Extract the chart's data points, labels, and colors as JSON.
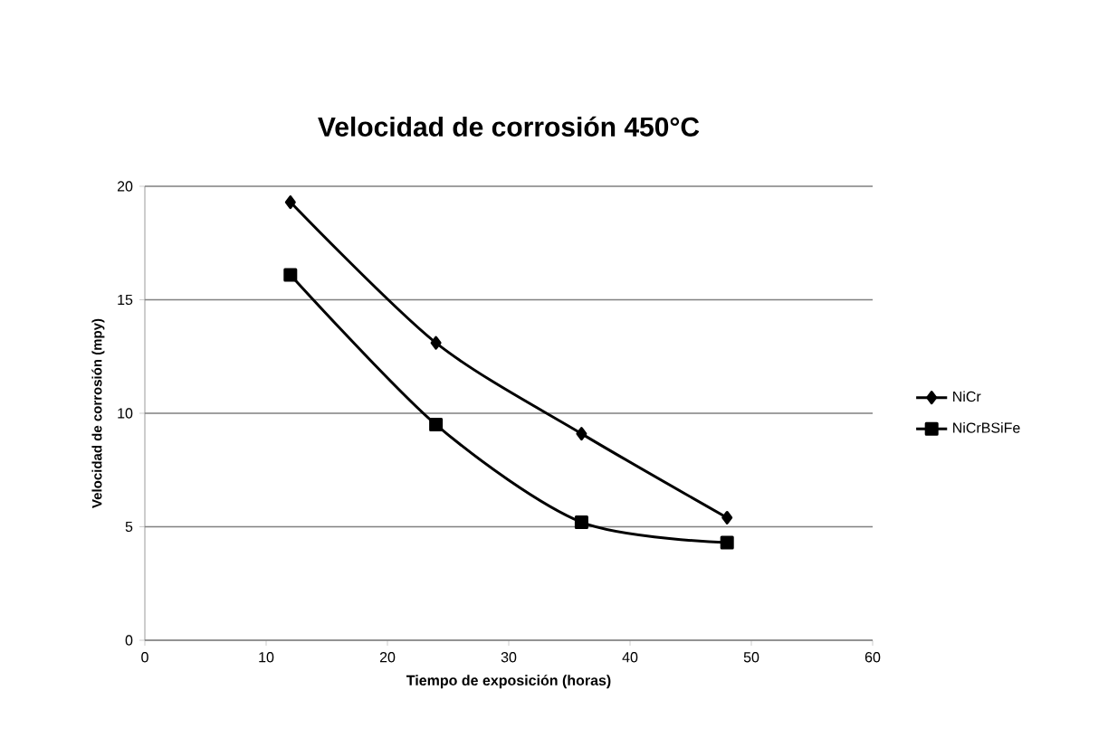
{
  "chart_data": {
    "type": "line",
    "title": "Velocidad de corrosión 450°C",
    "xlabel": "Tiempo de exposición (horas)",
    "ylabel": "Velocidad de corrosión (mpy)",
    "x": [
      12,
      24,
      36,
      48
    ],
    "series": [
      {
        "name": "NiCr",
        "color": "#000000",
        "marker": "diamond",
        "values": [
          19.3,
          13.1,
          9.1,
          5.4
        ]
      },
      {
        "name": "NiCrBSiFe",
        "color": "#000000",
        "marker": "square",
        "values": [
          16.1,
          9.5,
          5.2,
          4.3
        ]
      }
    ],
    "xlim": [
      0,
      60
    ],
    "xticks": [
      0,
      10,
      20,
      30,
      40,
      50,
      60
    ],
    "ylim": [
      0,
      20
    ],
    "yticks": [
      0,
      5,
      10,
      15,
      20
    ],
    "grid": "y",
    "legend": "right",
    "line_style": "solid"
  }
}
